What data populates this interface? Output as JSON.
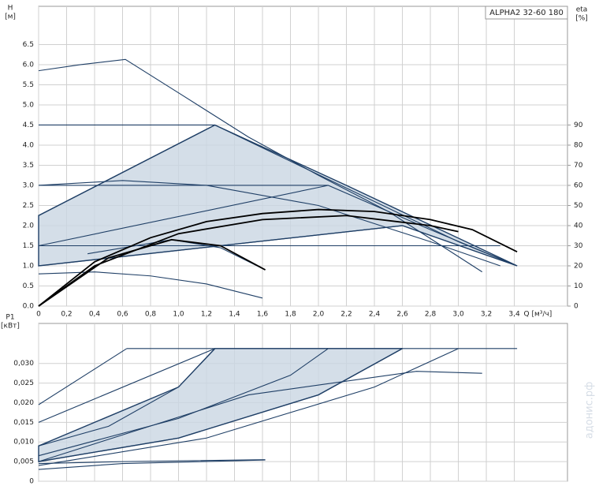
{
  "chart_data": [
    {
      "type": "line",
      "y_label": [
        "H",
        "[м]"
      ],
      "y2_label": [
        "eta",
        "[%]"
      ],
      "x_label": "Q [м³/ч]",
      "legend": "ALPHA2 32-60 180",
      "grid": true,
      "xlim": [
        0,
        3.78
      ],
      "ylim": [
        0,
        7.45
      ],
      "y2lim": [
        0,
        149
      ],
      "xticks": [
        0,
        {
          "value": 0.2,
          "label": "0,2"
        },
        {
          "value": 0.4,
          "label": "0,4"
        },
        {
          "value": 0.6,
          "label": "0,6"
        },
        {
          "value": 0.8,
          "label": "0,8"
        },
        {
          "value": 1.0,
          "label": "1,0"
        },
        {
          "value": 1.2,
          "label": "1,2"
        },
        {
          "value": 1.4,
          "label": "1,4"
        },
        {
          "value": 1.6,
          "label": "1,6"
        },
        {
          "value": 1.8,
          "label": "1,8"
        },
        {
          "value": 2.0,
          "label": "2,0"
        },
        {
          "value": 2.2,
          "label": "2,2"
        },
        {
          "value": 2.4,
          "label": "2,4"
        },
        {
          "value": 2.6,
          "label": "2,6"
        },
        {
          "value": 2.8,
          "label": "2,8"
        },
        {
          "value": 3.0,
          "label": "3,0"
        },
        {
          "value": 3.2,
          "label": "3,2"
        },
        {
          "value": 3.4,
          "label": "3,4"
        }
      ],
      "yticks": [
        {
          "value": 0,
          "label": "0.0"
        },
        0.5,
        {
          "value": 1,
          "label": "1.0"
        },
        1.5,
        {
          "value": 2,
          "label": "2.0"
        },
        2.5,
        {
          "value": 3,
          "label": "3.0"
        },
        3.5,
        {
          "value": 4,
          "label": "4.0"
        },
        4.5,
        {
          "value": 5,
          "label": "5.0"
        },
        5.5,
        {
          "value": 6,
          "label": "6.0"
        },
        6.5
      ],
      "y2ticks": [
        0,
        10,
        20,
        30,
        40,
        50,
        60,
        70,
        80,
        90
      ],
      "series": [
        {
          "color": "#1f3f66",
          "fill": "#c9d6e2",
          "x": [
            0,
            0,
            1.26,
            2.2,
            3.42,
            2.6,
            0
          ],
          "values": [
            1.0,
            2.25,
            4.5,
            3.0,
            1.0,
            2.0,
            1.0
          ]
        },
        {
          "color": "#1f3f66",
          "x": [
            0,
            0.3,
            0.62,
            1.0,
            1.5,
            2.0,
            2.5,
            3.17
          ],
          "values": [
            5.85,
            6.0,
            6.13,
            5.3,
            4.2,
            3.25,
            2.35,
            0.85
          ]
        },
        {
          "color": "#1f3f66",
          "x": [
            0,
            1.26,
            1.8,
            2.4,
            3.0,
            3.42
          ],
          "values": [
            4.5,
            4.5,
            3.6,
            2.6,
            1.6,
            1.0
          ]
        },
        {
          "color": "#1f3f66",
          "x": [
            0,
            1.26
          ],
          "values": [
            2.25,
            4.5
          ]
        },
        {
          "color": "#1f3f66",
          "x": [
            0,
            2.07,
            2.8,
            3.42
          ],
          "values": [
            3.0,
            3.0,
            1.9,
            1.0
          ]
        },
        {
          "color": "#1f3f66",
          "x": [
            0,
            2.07
          ],
          "values": [
            1.5,
            3.0
          ]
        },
        {
          "color": "#1f3f66",
          "x": [
            0,
            3.3
          ],
          "values": [
            1.5,
            1.5
          ]
        },
        {
          "color": "#1f3f66",
          "x": [
            0,
            2.6
          ],
          "values": [
            1.0,
            2.0
          ]
        },
        {
          "color": "#1f3f66",
          "x": [
            0,
            0.6,
            1.2,
            2.0,
            2.8,
            3.3
          ],
          "values": [
            3.0,
            3.12,
            3.0,
            2.5,
            1.6,
            1.0
          ]
        },
        {
          "color": "#1f3f66",
          "x": [
            0,
            0.4,
            0.8,
            1.2,
            1.6
          ],
          "values": [
            0.8,
            0.85,
            0.75,
            0.55,
            0.2
          ]
        },
        {
          "color": "#1f3f66",
          "x": [
            0.35,
            0.95,
            1.3,
            1.62
          ],
          "values": [
            1.3,
            1.65,
            1.45,
            0.9
          ]
        },
        {
          "color": "#000000",
          "axis": "y2",
          "x": [
            0,
            0.4,
            0.8,
            1.2,
            1.6,
            2.0,
            2.4,
            2.8,
            3.1,
            3.42
          ],
          "values": [
            0,
            22,
            34,
            42,
            46,
            48,
            47,
            43,
            38,
            27
          ]
        },
        {
          "color": "#000000",
          "axis": "y2",
          "x": [
            0,
            0.4,
            1.0,
            1.6,
            2.2,
            2.8,
            3.0
          ],
          "values": [
            0,
            20,
            36,
            43,
            45,
            40,
            37
          ]
        },
        {
          "color": "#000000",
          "axis": "y2",
          "x": [
            0,
            0.5,
            0.95,
            1.3,
            1.62
          ],
          "values": [
            0,
            24,
            33,
            30,
            18
          ]
        }
      ]
    },
    {
      "type": "line",
      "y_label": [
        "P1",
        "[кВт]"
      ],
      "grid": true,
      "xlim": [
        0,
        3.78
      ],
      "ylim": [
        0,
        0.0402
      ],
      "xticks": [
        0,
        0.2,
        0.4,
        0.6,
        0.8,
        1.0,
        1.2,
        1.4,
        1.6,
        1.8,
        2.0,
        2.2,
        2.4,
        2.6,
        2.8,
        3.0,
        3.2,
        3.4
      ],
      "yticks": [
        0,
        {
          "value": 0.005,
          "label": "0,005"
        },
        {
          "value": 0.01,
          "label": "0,010"
        },
        {
          "value": 0.015,
          "label": "0,015"
        },
        {
          "value": 0.02,
          "label": "0,020"
        },
        {
          "value": 0.025,
          "label": "0,025"
        },
        {
          "value": 0.03,
          "label": "0,030"
        }
      ],
      "series": [
        {
          "color": "#1f3f66",
          "fill": "#c9d6e2",
          "x": [
            0,
            0,
            1.0,
            1.26,
            2.6,
            2.0,
            1.0,
            0
          ],
          "values": [
            0.005,
            0.009,
            0.024,
            0.0338,
            0.0338,
            0.022,
            0.011,
            0.005
          ]
        },
        {
          "color": "#1f3f66",
          "x": [
            0.63,
            3.42
          ],
          "values": [
            0.0338,
            0.0338
          ]
        },
        {
          "color": "#1f3f66",
          "x": [
            0,
            0.63
          ],
          "values": [
            0.0195,
            0.0338
          ]
        },
        {
          "color": "#1f3f66",
          "x": [
            0,
            1.26
          ],
          "values": [
            0.015,
            0.0338
          ]
        },
        {
          "color": "#1f3f66",
          "x": [
            0,
            0.5,
            1.0,
            1.26
          ],
          "values": [
            0.009,
            0.014,
            0.024,
            0.0338
          ]
        },
        {
          "color": "#1f3f66",
          "x": [
            0,
            1.0,
            1.8,
            2.07
          ],
          "values": [
            0.0065,
            0.016,
            0.027,
            0.0338
          ]
        },
        {
          "color": "#1f3f66",
          "x": [
            0,
            1.0,
            2.0,
            2.6
          ],
          "values": [
            0.005,
            0.011,
            0.022,
            0.0338
          ]
        },
        {
          "color": "#1f3f66",
          "x": [
            0,
            1.5,
            2.7,
            3.17
          ],
          "values": [
            0.005,
            0.022,
            0.028,
            0.0275
          ]
        },
        {
          "color": "#1f3f66",
          "x": [
            0,
            1.2,
            2.4,
            3.0
          ],
          "values": [
            0.004,
            0.011,
            0.024,
            0.0338
          ]
        },
        {
          "color": "#1f3f66",
          "x": [
            0,
            0.6,
            1.62
          ],
          "values": [
            0.003,
            0.0045,
            0.0054
          ]
        },
        {
          "color": "#1f3f66",
          "x": [
            0,
            0.6,
            1.62
          ],
          "values": [
            0.0045,
            0.005,
            0.0055
          ]
        }
      ]
    }
  ],
  "watermark": "адонис.рф"
}
